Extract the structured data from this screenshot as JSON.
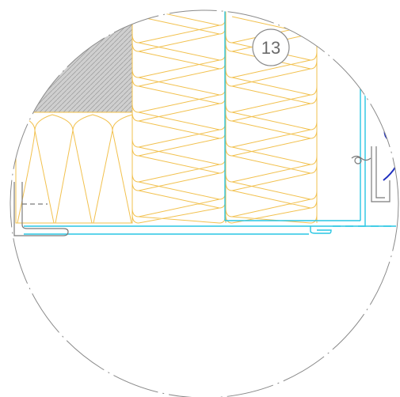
{
  "detail": {
    "callout_number": "13"
  },
  "colors": {
    "background": "#ffffff",
    "insulation": "#f2c14e",
    "concrete_fill": "#cfcfcf",
    "concrete_hatch": "#9a9a9a",
    "membrane": "#29c6e3",
    "seal": "#1f2fbf",
    "metal": "#7a7a7a",
    "outline": "#8a8a8a",
    "callout": "#6b6b6b"
  },
  "icons": [
    "callout-circle",
    "frame-profile",
    "flashing-profile"
  ]
}
